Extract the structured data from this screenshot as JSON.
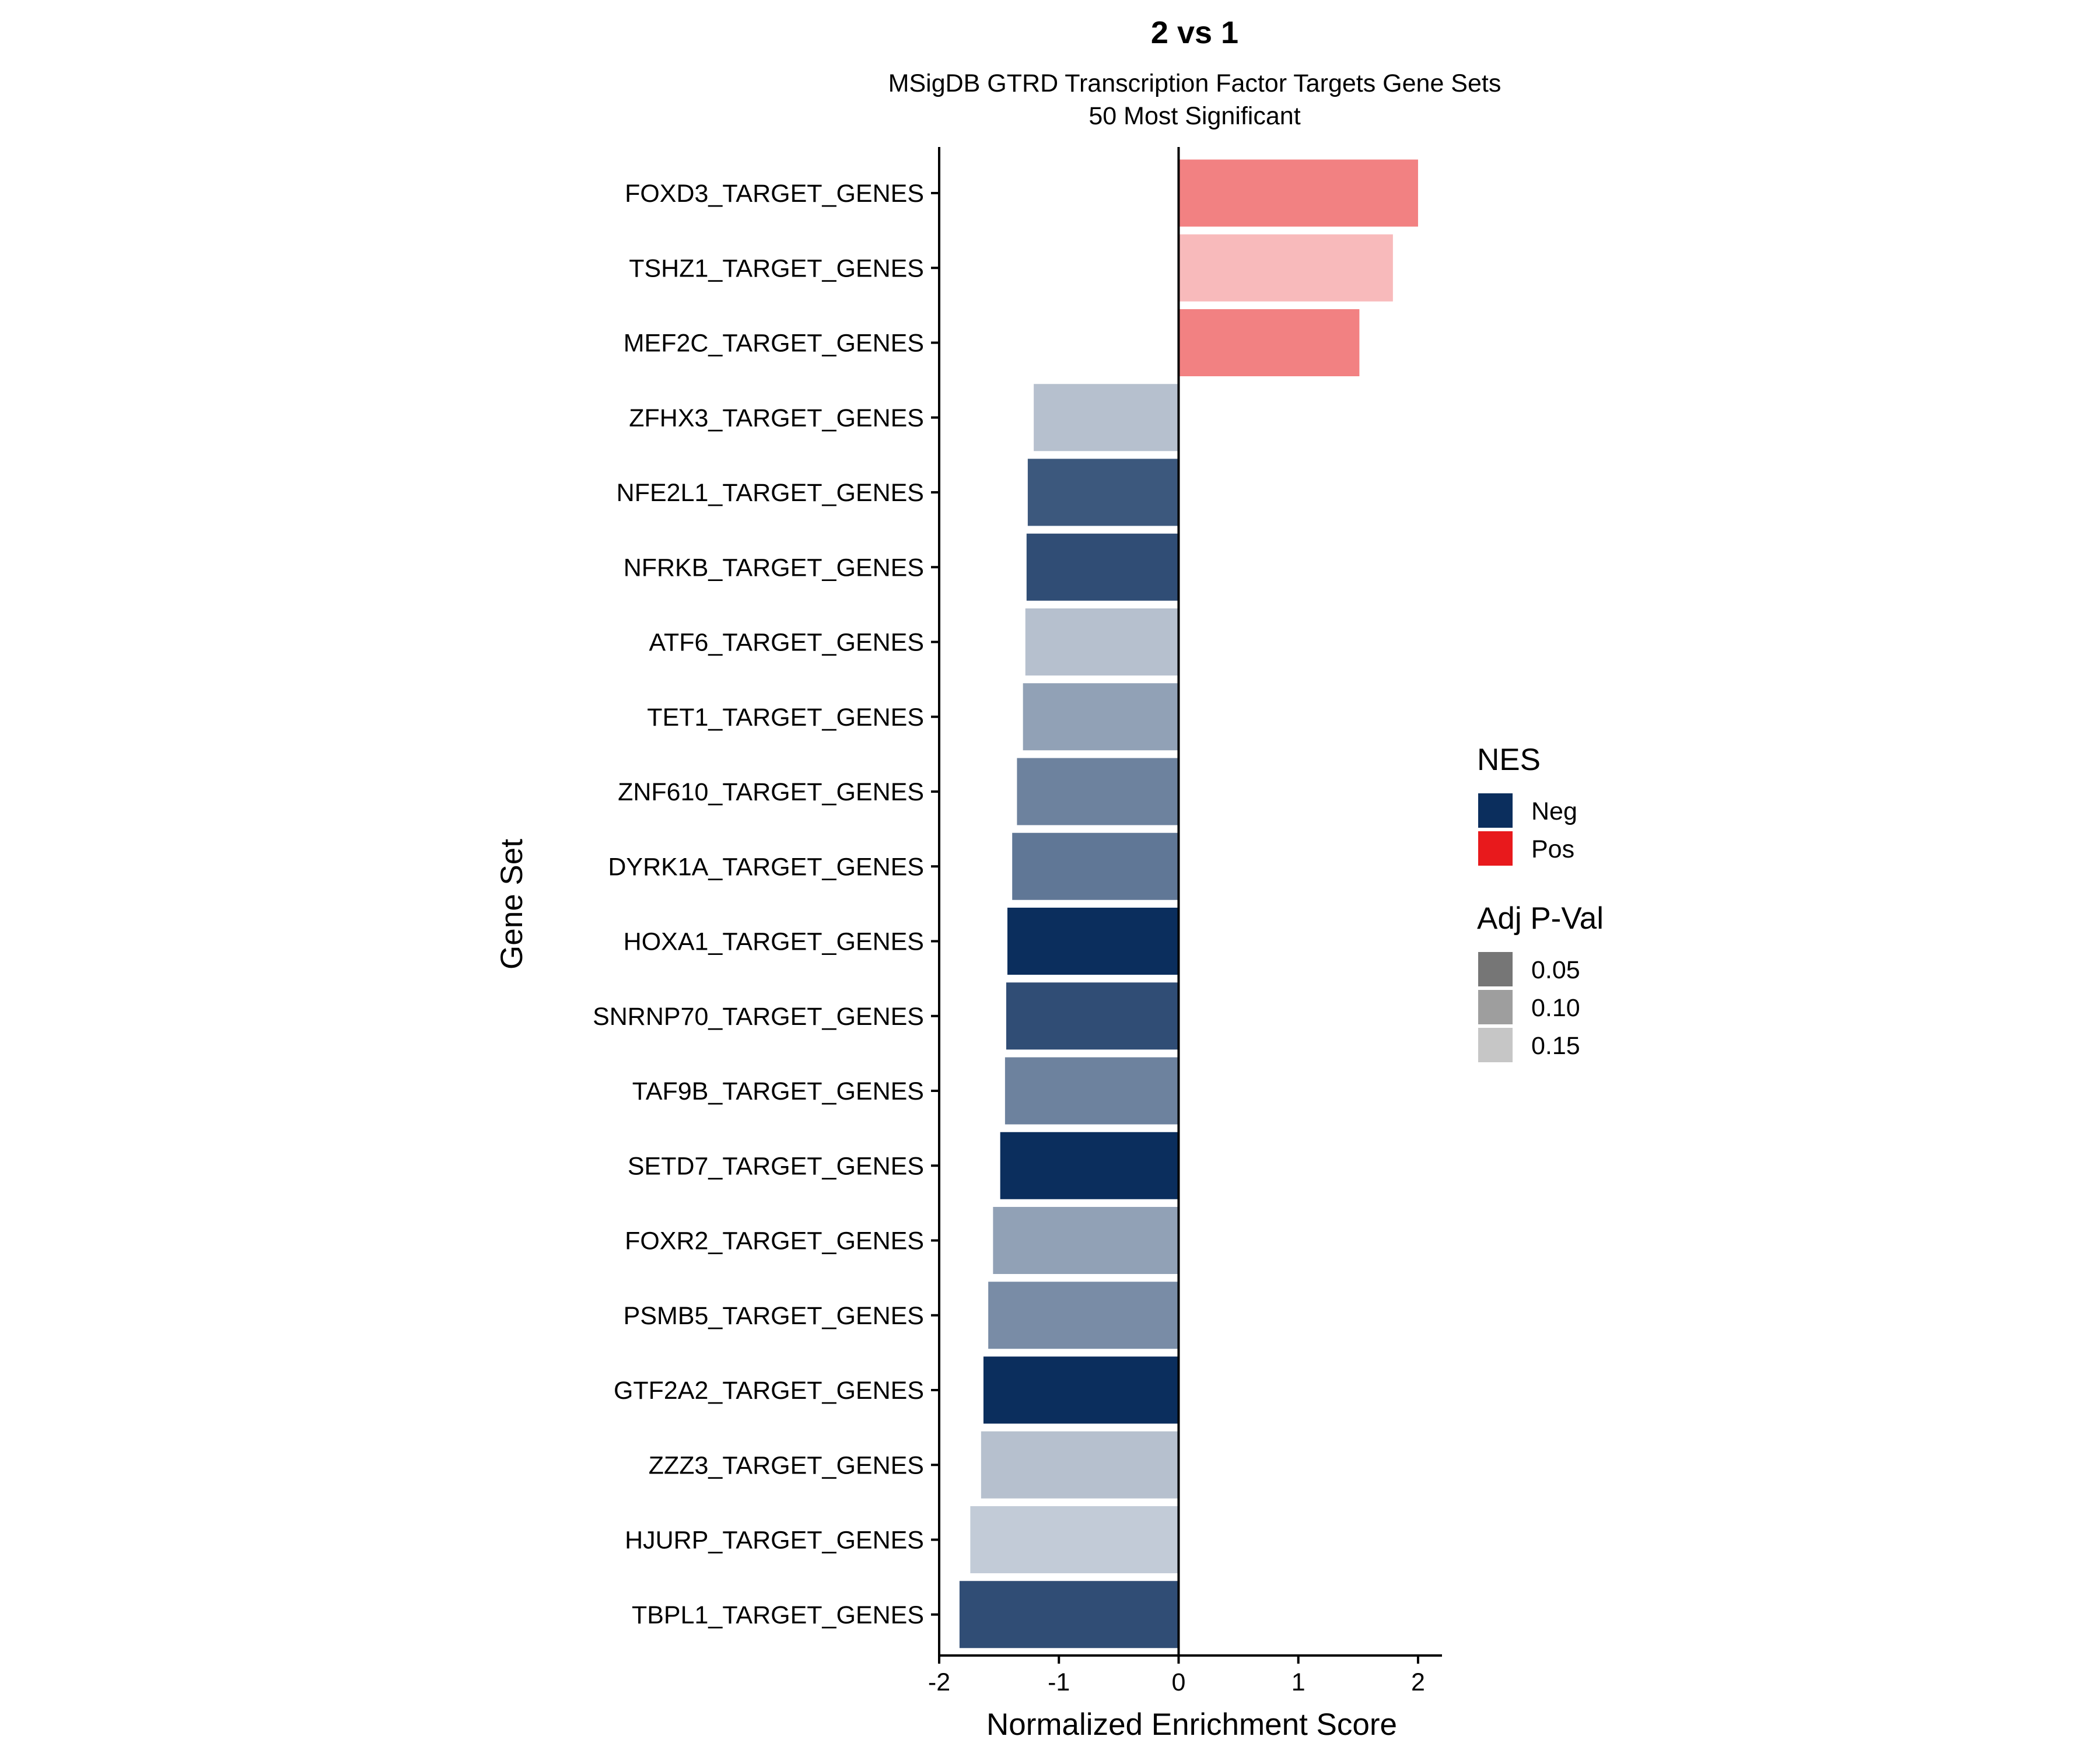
{
  "chart_data": {
    "type": "bar",
    "orientation": "horizontal",
    "title": "2 vs 1",
    "subtitle": [
      "MSigDB GTRD Transcription Factor Targets Gene Sets",
      "50 Most Significant"
    ],
    "xlabel": "Normalized Enrichment Score",
    "ylabel": "Gene Set",
    "xlim": [
      -2,
      2.2
    ],
    "xticks": [
      -2,
      -1,
      0,
      1,
      2
    ],
    "xtick_labels": [
      "-2",
      "-1",
      "0",
      "1",
      "2"
    ],
    "categories": [
      "FOXD3_TARGET_GENES",
      "TSHZ1_TARGET_GENES",
      "MEF2C_TARGET_GENES",
      "ZFHX3_TARGET_GENES",
      "NFE2L1_TARGET_GENES",
      "NFRKB_TARGET_GENES",
      "ATF6_TARGET_GENES",
      "TET1_TARGET_GENES",
      "ZNF610_TARGET_GENES",
      "DYRK1A_TARGET_GENES",
      "HOXA1_TARGET_GENES",
      "SNRNP70_TARGET_GENES",
      "TAF9B_TARGET_GENES",
      "SETD7_TARGET_GENES",
      "FOXR2_TARGET_GENES",
      "PSMB5_TARGET_GENES",
      "GTF2A2_TARGET_GENES",
      "ZZZ3_TARGET_GENES",
      "HJURP_TARGET_GENES",
      "TBPL1_TARGET_GENES"
    ],
    "values": [
      2.0,
      1.79,
      1.51,
      -1.21,
      -1.26,
      -1.27,
      -1.28,
      -1.3,
      -1.35,
      -1.39,
      -1.43,
      -1.44,
      -1.45,
      -1.49,
      -1.55,
      -1.59,
      -1.63,
      -1.65,
      -1.74,
      -1.83
    ],
    "adj_pval": [
      0.1,
      0.15,
      0.1,
      0.15,
      0.05,
      0.04,
      0.15,
      0.12,
      0.09,
      0.08,
      0.01,
      0.04,
      0.09,
      0.01,
      0.12,
      0.1,
      0.01,
      0.15,
      0.16,
      0.04
    ],
    "colors": {
      "neg": "#0b2e5d",
      "pos": "#e8191c"
    },
    "legend": {
      "nes_title": "NES",
      "nes_items": [
        {
          "label": "Neg",
          "color": "#0b2e5d"
        },
        {
          "label": "Pos",
          "color": "#e8191c"
        }
      ],
      "pval_title": "Adj P-Val",
      "pval_items": [
        {
          "label": "0.05",
          "color": "#767676"
        },
        {
          "label": "0.10",
          "color": "#9e9e9e"
        },
        {
          "label": "0.15",
          "color": "#c6c6c6"
        }
      ],
      "position": "right"
    }
  }
}
